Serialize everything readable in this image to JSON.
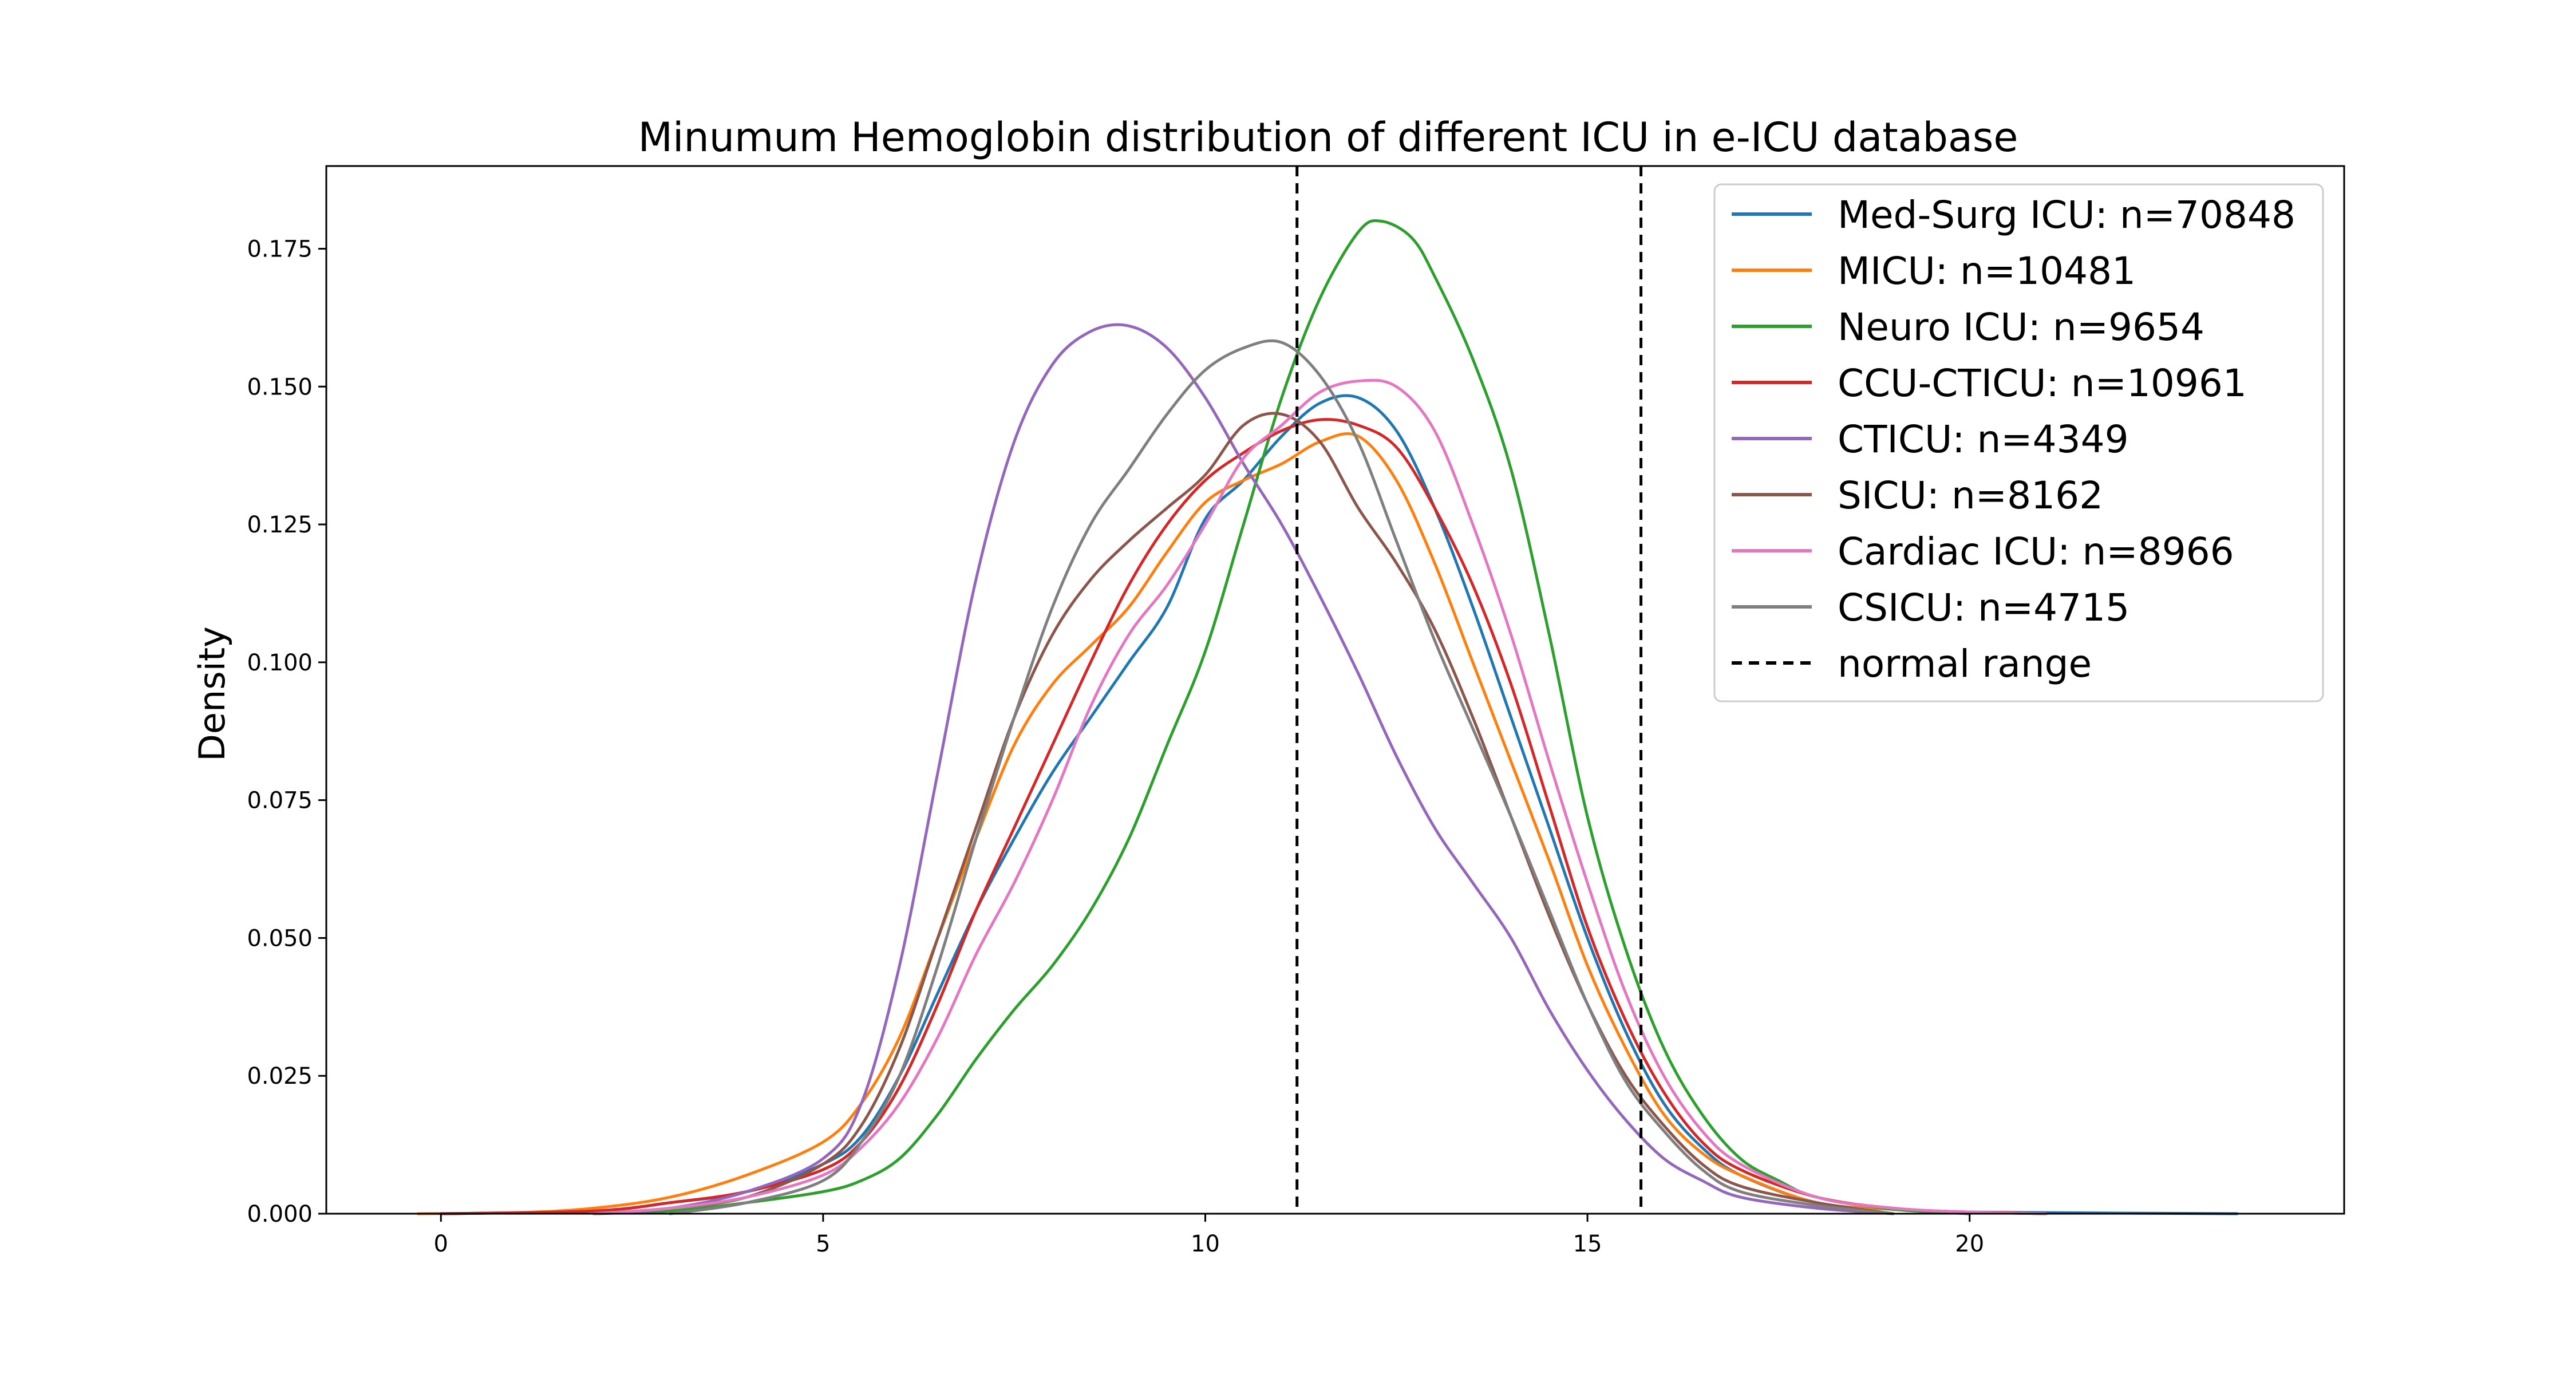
{
  "chart_data": {
    "type": "line",
    "title": "Minumum Hemoglobin distribution of different ICU in e-ICU database",
    "xlabel": "",
    "ylabel": "Density",
    "xlim": [
      -1.5,
      24.9
    ],
    "ylim": [
      0,
      0.19
    ],
    "x_ticks": [
      0,
      5,
      10,
      15,
      20
    ],
    "y_ticks": [
      0.0,
      0.025,
      0.05,
      0.075,
      0.1,
      0.125,
      0.15,
      0.175
    ],
    "x_tick_labels": [
      "0",
      "5",
      "10",
      "15",
      "20"
    ],
    "y_tick_labels": [
      "0.000",
      "0.025",
      "0.050",
      "0.075",
      "0.100",
      "0.125",
      "0.150",
      "0.175"
    ],
    "grid": false,
    "legend_position": "top-right",
    "reference_lines": [
      {
        "x": 11.2,
        "style": "dashed",
        "color": "#000000"
      },
      {
        "x": 15.7,
        "style": "dashed",
        "color": "#000000"
      }
    ],
    "series": [
      {
        "name": "Med-Surg ICU: n=70848",
        "color": "#1f77b4",
        "points": [
          [
            0,
            0.0
          ],
          [
            2,
            0.0005
          ],
          [
            3,
            0.002
          ],
          [
            4,
            0.004
          ],
          [
            5,
            0.009
          ],
          [
            5.5,
            0.014
          ],
          [
            6,
            0.025
          ],
          [
            6.5,
            0.04
          ],
          [
            7,
            0.055
          ],
          [
            7.5,
            0.068
          ],
          [
            8,
            0.08
          ],
          [
            8.5,
            0.09
          ],
          [
            9,
            0.1
          ],
          [
            9.5,
            0.11
          ],
          [
            10,
            0.126
          ],
          [
            10.5,
            0.133
          ],
          [
            11,
            0.141
          ],
          [
            11.5,
            0.147
          ],
          [
            12,
            0.148
          ],
          [
            12.5,
            0.142
          ],
          [
            13,
            0.128
          ],
          [
            13.5,
            0.11
          ],
          [
            14,
            0.09
          ],
          [
            14.5,
            0.07
          ],
          [
            15,
            0.05
          ],
          [
            15.5,
            0.033
          ],
          [
            16,
            0.02
          ],
          [
            16.5,
            0.012
          ],
          [
            17,
            0.007
          ],
          [
            18,
            0.002
          ],
          [
            19,
            0.0008
          ],
          [
            20,
            0.0003
          ],
          [
            23.5,
            0.0
          ]
        ]
      },
      {
        "name": "MICU: n=10481",
        "color": "#ff7f0e",
        "points": [
          [
            -0.3,
            0.0
          ],
          [
            1,
            0.0002
          ],
          [
            2,
            0.001
          ],
          [
            3,
            0.003
          ],
          [
            4,
            0.007
          ],
          [
            5,
            0.013
          ],
          [
            5.5,
            0.02
          ],
          [
            6,
            0.032
          ],
          [
            6.5,
            0.05
          ],
          [
            7,
            0.068
          ],
          [
            7.5,
            0.085
          ],
          [
            8,
            0.096
          ],
          [
            8.5,
            0.103
          ],
          [
            9,
            0.11
          ],
          [
            9.5,
            0.12
          ],
          [
            10,
            0.129
          ],
          [
            10.5,
            0.133
          ],
          [
            11,
            0.136
          ],
          [
            11.5,
            0.14
          ],
          [
            12,
            0.141
          ],
          [
            12.5,
            0.133
          ],
          [
            13,
            0.118
          ],
          [
            13.5,
            0.1
          ],
          [
            14,
            0.082
          ],
          [
            14.5,
            0.064
          ],
          [
            15,
            0.045
          ],
          [
            15.5,
            0.03
          ],
          [
            16,
            0.018
          ],
          [
            16.5,
            0.011
          ],
          [
            17,
            0.007
          ],
          [
            18,
            0.002
          ],
          [
            19,
            0.0008
          ],
          [
            20,
            0.0003
          ],
          [
            21,
            0.0
          ]
        ]
      },
      {
        "name": "Neuro ICU: n=9654",
        "color": "#2ca02c",
        "points": [
          [
            2,
            0.0
          ],
          [
            3,
            0.0005
          ],
          [
            4,
            0.002
          ],
          [
            5,
            0.004
          ],
          [
            5.5,
            0.006
          ],
          [
            6,
            0.01
          ],
          [
            6.5,
            0.018
          ],
          [
            7,
            0.028
          ],
          [
            7.5,
            0.037
          ],
          [
            8,
            0.045
          ],
          [
            8.5,
            0.055
          ],
          [
            9,
            0.068
          ],
          [
            9.5,
            0.085
          ],
          [
            10,
            0.102
          ],
          [
            10.5,
            0.125
          ],
          [
            11,
            0.148
          ],
          [
            11.5,
            0.166
          ],
          [
            12,
            0.178
          ],
          [
            12.3,
            0.18
          ],
          [
            12.7,
            0.177
          ],
          [
            13,
            0.17
          ],
          [
            13.5,
            0.155
          ],
          [
            14,
            0.135
          ],
          [
            14.5,
            0.105
          ],
          [
            15,
            0.072
          ],
          [
            15.5,
            0.048
          ],
          [
            16,
            0.03
          ],
          [
            16.5,
            0.018
          ],
          [
            17,
            0.01
          ],
          [
            17.5,
            0.006
          ],
          [
            18,
            0.003
          ],
          [
            19,
            0.0008
          ],
          [
            20,
            0.0
          ]
        ]
      },
      {
        "name": "CCU-CTICU: n=10961",
        "color": "#d62728",
        "points": [
          [
            0,
            0.0
          ],
          [
            2,
            0.0005
          ],
          [
            3,
            0.002
          ],
          [
            4,
            0.004
          ],
          [
            5,
            0.008
          ],
          [
            5.5,
            0.013
          ],
          [
            6,
            0.023
          ],
          [
            6.5,
            0.038
          ],
          [
            7,
            0.055
          ],
          [
            7.5,
            0.07
          ],
          [
            8,
            0.085
          ],
          [
            8.5,
            0.1
          ],
          [
            9,
            0.114
          ],
          [
            9.5,
            0.125
          ],
          [
            10,
            0.133
          ],
          [
            10.5,
            0.138
          ],
          [
            11,
            0.142
          ],
          [
            11.5,
            0.144
          ],
          [
            12,
            0.143
          ],
          [
            12.5,
            0.139
          ],
          [
            13,
            0.128
          ],
          [
            13.5,
            0.114
          ],
          [
            14,
            0.096
          ],
          [
            14.5,
            0.074
          ],
          [
            15,
            0.052
          ],
          [
            15.5,
            0.035
          ],
          [
            16,
            0.022
          ],
          [
            16.5,
            0.013
          ],
          [
            17,
            0.008
          ],
          [
            18,
            0.003
          ],
          [
            19,
            0.001
          ],
          [
            20,
            0.0003
          ],
          [
            21,
            0.0
          ]
        ]
      },
      {
        "name": "CTICU: n=4349",
        "color": "#9467bd",
        "points": [
          [
            2,
            0.0
          ],
          [
            3,
            0.001
          ],
          [
            4,
            0.004
          ],
          [
            5,
            0.01
          ],
          [
            5.5,
            0.02
          ],
          [
            6,
            0.045
          ],
          [
            6.5,
            0.08
          ],
          [
            7,
            0.115
          ],
          [
            7.5,
            0.14
          ],
          [
            8,
            0.154
          ],
          [
            8.5,
            0.16
          ],
          [
            9,
            0.161
          ],
          [
            9.5,
            0.157
          ],
          [
            10,
            0.148
          ],
          [
            10.5,
            0.136
          ],
          [
            11,
            0.125
          ],
          [
            11.5,
            0.112
          ],
          [
            12,
            0.098
          ],
          [
            12.5,
            0.083
          ],
          [
            13,
            0.07
          ],
          [
            13.5,
            0.06
          ],
          [
            14,
            0.05
          ],
          [
            14.5,
            0.037
          ],
          [
            15,
            0.026
          ],
          [
            15.5,
            0.017
          ],
          [
            16,
            0.01
          ],
          [
            16.5,
            0.006
          ],
          [
            17,
            0.003
          ],
          [
            18,
            0.001
          ],
          [
            19,
            0.0
          ]
        ]
      },
      {
        "name": "SICU: n=8162",
        "color": "#8c564b",
        "points": [
          [
            2,
            0.0
          ],
          [
            3,
            0.001
          ],
          [
            4,
            0.003
          ],
          [
            5,
            0.009
          ],
          [
            5.5,
            0.016
          ],
          [
            6,
            0.03
          ],
          [
            6.5,
            0.05
          ],
          [
            7,
            0.07
          ],
          [
            7.5,
            0.09
          ],
          [
            8,
            0.105
          ],
          [
            8.5,
            0.115
          ],
          [
            9,
            0.122
          ],
          [
            9.5,
            0.128
          ],
          [
            10,
            0.134
          ],
          [
            10.5,
            0.143
          ],
          [
            11,
            0.145
          ],
          [
            11.5,
            0.14
          ],
          [
            12,
            0.128
          ],
          [
            12.5,
            0.118
          ],
          [
            13,
            0.106
          ],
          [
            13.5,
            0.09
          ],
          [
            14,
            0.072
          ],
          [
            14.5,
            0.054
          ],
          [
            15,
            0.038
          ],
          [
            15.5,
            0.025
          ],
          [
            16,
            0.016
          ],
          [
            16.5,
            0.009
          ],
          [
            17,
            0.005
          ],
          [
            18,
            0.002
          ],
          [
            19,
            0.0
          ]
        ]
      },
      {
        "name": "Cardiac ICU: n=8966",
        "color": "#e377c2",
        "points": [
          [
            2,
            0.0
          ],
          [
            3,
            0.001
          ],
          [
            4,
            0.003
          ],
          [
            5,
            0.007
          ],
          [
            5.5,
            0.012
          ],
          [
            6,
            0.02
          ],
          [
            6.5,
            0.032
          ],
          [
            7,
            0.047
          ],
          [
            7.5,
            0.06
          ],
          [
            8,
            0.075
          ],
          [
            8.5,
            0.092
          ],
          [
            9,
            0.105
          ],
          [
            9.5,
            0.114
          ],
          [
            10,
            0.125
          ],
          [
            10.5,
            0.137
          ],
          [
            11,
            0.143
          ],
          [
            11.5,
            0.149
          ],
          [
            12,
            0.151
          ],
          [
            12.5,
            0.15
          ],
          [
            13,
            0.142
          ],
          [
            13.5,
            0.125
          ],
          [
            14,
            0.105
          ],
          [
            14.5,
            0.082
          ],
          [
            15,
            0.06
          ],
          [
            15.5,
            0.04
          ],
          [
            16,
            0.025
          ],
          [
            16.5,
            0.015
          ],
          [
            17,
            0.009
          ],
          [
            18,
            0.003
          ],
          [
            19,
            0.001
          ],
          [
            20,
            0.0003
          ],
          [
            21,
            0.0
          ]
        ]
      },
      {
        "name": "CSICU: n=4715",
        "color": "#7f7f7f",
        "points": [
          [
            3,
            0.0
          ],
          [
            4,
            0.002
          ],
          [
            5,
            0.006
          ],
          [
            5.5,
            0.013
          ],
          [
            6,
            0.025
          ],
          [
            6.5,
            0.045
          ],
          [
            7,
            0.068
          ],
          [
            7.5,
            0.09
          ],
          [
            8,
            0.11
          ],
          [
            8.5,
            0.125
          ],
          [
            9,
            0.135
          ],
          [
            9.5,
            0.145
          ],
          [
            10,
            0.153
          ],
          [
            10.5,
            0.157
          ],
          [
            11,
            0.158
          ],
          [
            11.5,
            0.152
          ],
          [
            12,
            0.14
          ],
          [
            12.5,
            0.122
          ],
          [
            13,
            0.104
          ],
          [
            13.5,
            0.088
          ],
          [
            14,
            0.072
          ],
          [
            14.5,
            0.055
          ],
          [
            15,
            0.038
          ],
          [
            15.5,
            0.024
          ],
          [
            16,
            0.015
          ],
          [
            16.5,
            0.008
          ],
          [
            17,
            0.004
          ],
          [
            18,
            0.0015
          ],
          [
            19,
            0.0
          ]
        ]
      }
    ],
    "legend_extra": {
      "label": "normal range",
      "style": "dashed",
      "color": "#000000"
    }
  }
}
